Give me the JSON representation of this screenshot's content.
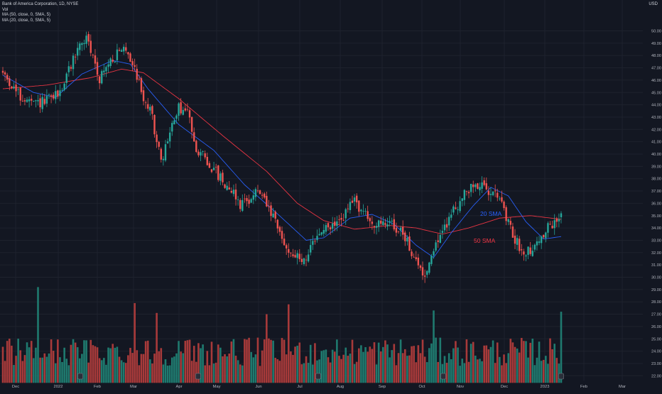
{
  "legend": {
    "symbol": "Bank of America Corporation, 1D, NYSE",
    "vol": "Vol",
    "ma50": "MA (50, close, 0, SMA, 5)",
    "ma20": "MA (20, close, 0, SMA, 5)"
  },
  "currency": "USD",
  "colors": {
    "background": "#131722",
    "up": "#26a69a",
    "down": "#ef5350",
    "vol_up": "#1f7a6f",
    "vol_down": "#a83a3a",
    "sma20": "#2962ff",
    "sma50": "#f23645",
    "grid": "#1e222d",
    "text": "#b2b5be"
  },
  "chart_data": {
    "type": "candlestick",
    "y_ticks": [
      "50.00",
      "49.00",
      "48.00",
      "47.00",
      "46.00",
      "45.00",
      "44.00",
      "43.00",
      "42.00",
      "41.00",
      "40.00",
      "39.00",
      "38.00",
      "37.00",
      "36.00",
      "35.00",
      "34.00",
      "33.00",
      "32.00",
      "31.00",
      "30.00",
      "29.00",
      "28.00",
      "27.00",
      "26.00",
      "25.00",
      "24.00",
      "23.00",
      "22.00"
    ],
    "x_ticks": [
      "Dec",
      "2022",
      "Feb",
      "Mar",
      "Apr",
      "May",
      "Jun",
      "Jul",
      "Aug",
      "Sep",
      "Oct",
      "Nov",
      "Dec",
      "2023",
      "Feb",
      "Mar"
    ],
    "annotations": [
      {
        "text": "20 SMA",
        "color": "#2962ff"
      },
      {
        "text": "50 SMA",
        "color": "#f23645"
      }
    ],
    "ylim": [
      22,
      50.5
    ],
    "price_anchors": [
      [
        0,
        46.6
      ],
      [
        8,
        44.6
      ],
      [
        14,
        44.0
      ],
      [
        20,
        44.3
      ],
      [
        26,
        45.0
      ],
      [
        34,
        48.6
      ],
      [
        38,
        49.4
      ],
      [
        44,
        46.2
      ],
      [
        50,
        47.8
      ],
      [
        56,
        48.6
      ],
      [
        60,
        47.0
      ],
      [
        64,
        44.6
      ],
      [
        68,
        43.0
      ],
      [
        72,
        39.2
      ],
      [
        76,
        41.8
      ],
      [
        80,
        43.7
      ],
      [
        84,
        43.4
      ],
      [
        88,
        40.6
      ],
      [
        92,
        39.6
      ],
      [
        96,
        38.7
      ],
      [
        100,
        37.8
      ],
      [
        104,
        37.2
      ],
      [
        108,
        35.9
      ],
      [
        112,
        36.4
      ],
      [
        116,
        37.0
      ],
      [
        120,
        35.8
      ],
      [
        124,
        34.4
      ],
      [
        128,
        32.6
      ],
      [
        132,
        31.9
      ],
      [
        136,
        31.3
      ],
      [
        140,
        32.2
      ],
      [
        144,
        33.6
      ],
      [
        148,
        34.0
      ],
      [
        152,
        34.3
      ],
      [
        156,
        35.2
      ],
      [
        160,
        36.3
      ],
      [
        164,
        35.2
      ],
      [
        168,
        34.4
      ],
      [
        172,
        34.1
      ],
      [
        176,
        34.6
      ],
      [
        180,
        33.8
      ],
      [
        184,
        33.0
      ],
      [
        188,
        31.1
      ],
      [
        192,
        30.2
      ],
      [
        196,
        32.4
      ],
      [
        200,
        33.6
      ],
      [
        204,
        35.2
      ],
      [
        208,
        36.2
      ],
      [
        212,
        37.1
      ],
      [
        216,
        37.6
      ],
      [
        220,
        37.0
      ],
      [
        224,
        37.4
      ],
      [
        228,
        35.2
      ],
      [
        232,
        33.4
      ],
      [
        236,
        32.1
      ],
      [
        240,
        32.3
      ],
      [
        244,
        32.9
      ],
      [
        248,
        34.0
      ],
      [
        252,
        34.4
      ],
      [
        254,
        35.1
      ]
    ],
    "sma20_anchors": [
      [
        0,
        46.4
      ],
      [
        14,
        45.0
      ],
      [
        24,
        44.6
      ],
      [
        36,
        46.5
      ],
      [
        50,
        47.6
      ],
      [
        58,
        47.3
      ],
      [
        66,
        45.3
      ],
      [
        80,
        42.4
      ],
      [
        96,
        40.3
      ],
      [
        110,
        37.5
      ],
      [
        124,
        35.3
      ],
      [
        138,
        33.0
      ],
      [
        146,
        33.2
      ],
      [
        158,
        34.8
      ],
      [
        168,
        35.1
      ],
      [
        178,
        34.3
      ],
      [
        188,
        32.6
      ],
      [
        196,
        31.6
      ],
      [
        204,
        33.6
      ],
      [
        214,
        35.8
      ],
      [
        222,
        37.3
      ],
      [
        230,
        36.6
      ],
      [
        238,
        34.5
      ],
      [
        246,
        33.1
      ],
      [
        254,
        33.3
      ]
    ],
    "sma50_anchors": [
      [
        0,
        45.3
      ],
      [
        20,
        45.6
      ],
      [
        40,
        46.2
      ],
      [
        54,
        46.9
      ],
      [
        64,
        46.6
      ],
      [
        80,
        44.5
      ],
      [
        100,
        41.5
      ],
      [
        120,
        38.6
      ],
      [
        134,
        36.0
      ],
      [
        146,
        34.6
      ],
      [
        160,
        33.9
      ],
      [
        176,
        34.2
      ],
      [
        188,
        34.0
      ],
      [
        200,
        33.5
      ],
      [
        212,
        34.0
      ],
      [
        226,
        34.8
      ],
      [
        240,
        35.0
      ],
      [
        254,
        34.7
      ]
    ],
    "volume_spikes": [
      [
        16,
        29.2
      ],
      [
        60,
        27.9
      ],
      [
        130,
        27.8
      ],
      [
        196,
        27.3
      ],
      [
        254,
        27.2
      ],
      [
        70,
        27.1
      ],
      [
        120,
        27.0
      ]
    ],
    "volume_range": [
      22,
      27.5
    ]
  }
}
